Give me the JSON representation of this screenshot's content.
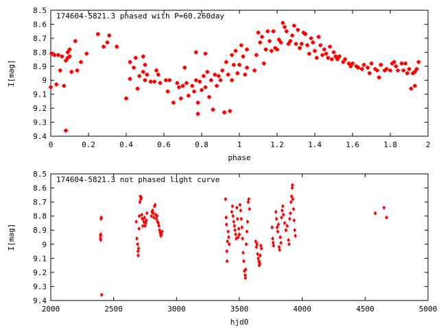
{
  "chart_data": [
    {
      "type": "scatter",
      "title": "174604-5821.3 phased with P=60.260day",
      "xlabel": "phase",
      "ylabel": "I[mag]",
      "xlim": [
        0,
        2
      ],
      "ylim": [
        9.4,
        8.5
      ],
      "y_inverted": true,
      "grid": false,
      "marker_color": "#ff0000",
      "xticks": [
        "0",
        "0.2",
        "0.4",
        "0.6",
        "0.8",
        "1",
        "1.2",
        "1.4",
        "1.6",
        "1.8",
        "2"
      ],
      "yticks": [
        "8.5",
        "8.6",
        "8.7",
        "8.8",
        "8.9",
        "9",
        "9.1",
        "9.2",
        "9.3",
        "9.4"
      ],
      "points": [
        [
          0.0,
          9.05
        ],
        [
          0.004,
          8.81
        ],
        [
          0.02,
          8.82
        ],
        [
          0.03,
          9.03
        ],
        [
          0.04,
          8.82
        ],
        [
          0.05,
          8.93
        ],
        [
          0.06,
          8.83
        ],
        [
          0.07,
          9.04
        ],
        [
          0.08,
          8.86
        ],
        [
          0.08,
          9.36
        ],
        [
          0.09,
          8.8
        ],
        [
          0.09,
          8.84
        ],
        [
          0.1,
          8.78
        ],
        [
          0.1,
          8.83
        ],
        [
          0.11,
          8.94
        ],
        [
          0.13,
          8.72
        ],
        [
          0.14,
          8.93
        ],
        [
          0.16,
          8.87
        ],
        [
          0.19,
          8.81
        ],
        [
          0.25,
          8.67
        ],
        [
          0.28,
          8.76
        ],
        [
          0.3,
          8.73
        ],
        [
          0.31,
          8.68
        ],
        [
          0.35,
          8.76
        ],
        [
          0.4,
          9.13
        ],
        [
          0.42,
          8.87
        ],
        [
          0.42,
          8.99
        ],
        [
          0.44,
          8.91
        ],
        [
          0.45,
          8.84
        ],
        [
          0.46,
          9.06
        ],
        [
          0.47,
          8.97
        ],
        [
          0.49,
          8.83
        ],
        [
          0.49,
          8.94
        ],
        [
          0.5,
          8.89
        ],
        [
          0.5,
          9.0
        ],
        [
          0.51,
          8.96
        ],
        [
          0.53,
          9.01
        ],
        [
          0.55,
          9.01
        ],
        [
          0.56,
          8.93
        ],
        [
          0.57,
          8.96
        ],
        [
          0.58,
          9.02
        ],
        [
          0.61,
          9.0
        ],
        [
          0.62,
          9.08
        ],
        [
          0.63,
          9.0
        ],
        [
          0.65,
          9.16
        ],
        [
          0.67,
          9.02
        ],
        [
          0.68,
          9.05
        ],
        [
          0.69,
          9.13
        ],
        [
          0.7,
          9.04
        ],
        [
          0.71,
          8.91
        ],
        [
          0.72,
          9.02
        ],
        [
          0.73,
          9.11
        ],
        [
          0.75,
          9.04
        ],
        [
          0.76,
          9.08
        ],
        [
          0.77,
          8.8
        ],
        [
          0.77,
          9.0
        ],
        [
          0.78,
          9.24
        ],
        [
          0.78,
          9.16
        ],
        [
          0.79,
          9.01
        ],
        [
          0.8,
          9.07
        ],
        [
          0.81,
          8.97
        ],
        [
          0.82,
          8.81
        ],
        [
          0.82,
          9.05
        ],
        [
          0.83,
          8.94
        ],
        [
          0.84,
          9.12
        ],
        [
          0.85,
          9.0
        ],
        [
          0.86,
          9.21
        ],
        [
          0.87,
          8.96
        ],
        [
          0.88,
          9.04
        ],
        [
          0.89,
          8.97
        ],
        [
          0.9,
          9.0
        ],
        [
          0.91,
          8.93
        ],
        [
          0.92,
          9.23
        ],
        [
          0.93,
          8.87
        ],
        [
          0.94,
          8.96
        ],
        [
          0.95,
          9.22
        ],
        [
          0.96,
          8.82
        ],
        [
          0.96,
          9.0
        ],
        [
          0.97,
          8.89
        ],
        [
          0.98,
          8.79
        ],
        [
          0.99,
          8.95
        ],
        [
          1.0,
          8.89
        ],
        [
          1.01,
          8.75
        ],
        [
          1.02,
          8.83
        ],
        [
          1.03,
          8.96
        ],
        [
          1.04,
          8.78
        ],
        [
          1.04,
          8.91
        ],
        [
          1.08,
          8.93
        ],
        [
          1.09,
          8.82
        ],
        [
          1.1,
          8.66
        ],
        [
          1.11,
          8.73
        ],
        [
          1.12,
          8.69
        ],
        [
          1.13,
          8.88
        ],
        [
          1.14,
          8.78
        ],
        [
          1.15,
          8.65
        ],
        [
          1.16,
          8.72
        ],
        [
          1.17,
          8.79
        ],
        [
          1.18,
          8.65
        ],
        [
          1.19,
          8.77
        ],
        [
          1.2,
          8.78
        ],
        [
          1.21,
          8.71
        ],
        [
          1.22,
          8.73
        ],
        [
          1.23,
          8.59
        ],
        [
          1.24,
          8.62
        ],
        [
          1.25,
          8.65
        ],
        [
          1.26,
          8.74
        ],
        [
          1.27,
          8.72
        ],
        [
          1.28,
          8.68
        ],
        [
          1.29,
          8.61
        ],
        [
          1.3,
          8.74
        ],
        [
          1.31,
          8.64
        ],
        [
          1.32,
          8.77
        ],
        [
          1.33,
          8.74
        ],
        [
          1.34,
          8.66
        ],
        [
          1.35,
          8.67
        ],
        [
          1.36,
          8.75
        ],
        [
          1.37,
          8.81
        ],
        [
          1.38,
          8.7
        ],
        [
          1.39,
          8.73
        ],
        [
          1.4,
          8.79
        ],
        [
          1.41,
          8.84
        ],
        [
          1.42,
          8.69
        ],
        [
          1.43,
          8.75
        ],
        [
          1.44,
          8.82
        ],
        [
          1.45,
          8.78
        ],
        [
          1.46,
          8.81
        ],
        [
          1.47,
          8.84
        ],
        [
          1.48,
          8.76
        ],
        [
          1.49,
          8.85
        ],
        [
          1.5,
          8.8
        ],
        [
          1.51,
          8.83
        ],
        [
          1.52,
          8.85
        ],
        [
          1.53,
          8.83
        ],
        [
          1.55,
          8.87
        ],
        [
          1.56,
          8.85
        ],
        [
          1.58,
          8.88
        ],
        [
          1.59,
          8.9
        ],
        [
          1.6,
          8.88
        ],
        [
          1.62,
          8.9
        ],
        [
          1.63,
          8.91
        ],
        [
          1.65,
          8.92
        ],
        [
          1.66,
          8.89
        ],
        [
          1.68,
          8.91
        ],
        [
          1.69,
          8.95
        ],
        [
          1.7,
          8.88
        ],
        [
          1.72,
          8.92
        ],
        [
          1.73,
          8.93
        ],
        [
          1.74,
          8.98
        ],
        [
          1.75,
          8.89
        ],
        [
          1.77,
          8.93
        ],
        [
          1.78,
          8.92
        ],
        [
          1.8,
          8.93
        ],
        [
          1.81,
          8.88
        ],
        [
          1.82,
          8.87
        ],
        [
          1.83,
          8.9
        ],
        [
          1.84,
          8.93
        ],
        [
          1.86,
          8.88
        ],
        [
          1.87,
          8.93
        ],
        [
          1.88,
          8.88
        ],
        [
          1.89,
          8.95
        ],
        [
          1.9,
          8.92
        ],
        [
          1.91,
          9.06
        ],
        [
          1.92,
          8.95
        ],
        [
          1.93,
          8.94
        ],
        [
          1.93,
          9.04
        ],
        [
          1.94,
          8.92
        ],
        [
          1.95,
          8.87
        ]
      ]
    },
    {
      "type": "scatter",
      "title": "174604-5821.3 not phased light curve",
      "xlabel": "hjd0",
      "ylabel": "I[mag]",
      "xlim": [
        2000,
        5000
      ],
      "ylim": [
        9.4,
        8.5
      ],
      "y_inverted": true,
      "grid": false,
      "marker_color": "#ff0000",
      "xticks": [
        "2000",
        "2500",
        "3000",
        "3500",
        "4000",
        "4500",
        "5000"
      ],
      "yticks": [
        "8.5",
        "8.6",
        "8.7",
        "8.8",
        "8.9",
        "9",
        "9.1",
        "9.2",
        "9.3",
        "9.4"
      ],
      "points": [
        [
          2395,
          8.96
        ],
        [
          2396,
          8.94
        ],
        [
          2397,
          8.93
        ],
        [
          2398,
          8.97
        ],
        [
          2400,
          8.82
        ],
        [
          2402,
          8.81
        ],
        [
          2405,
          9.36
        ],
        [
          2680,
          8.84
        ],
        [
          2685,
          8.96
        ],
        [
          2690,
          9.0
        ],
        [
          2693,
          9.05
        ],
        [
          2695,
          9.08
        ],
        [
          2698,
          9.03
        ],
        [
          2702,
          8.89
        ],
        [
          2705,
          8.8
        ],
        [
          2708,
          8.7
        ],
        [
          2712,
          8.66
        ],
        [
          2716,
          8.68
        ],
        [
          2720,
          8.67
        ],
        [
          2724,
          8.79
        ],
        [
          2728,
          8.82
        ],
        [
          2732,
          8.87
        ],
        [
          2740,
          8.84
        ],
        [
          2745,
          8.81
        ],
        [
          2750,
          8.87
        ],
        [
          2755,
          8.85
        ],
        [
          2760,
          8.83
        ],
        [
          2765,
          8.78
        ],
        [
          2800,
          8.8
        ],
        [
          2805,
          8.77
        ],
        [
          2810,
          8.76
        ],
        [
          2815,
          8.78
        ],
        [
          2820,
          8.81
        ],
        [
          2825,
          8.73
        ],
        [
          2830,
          8.72
        ],
        [
          2835,
          8.79
        ],
        [
          2840,
          8.82
        ],
        [
          2845,
          8.8
        ],
        [
          2850,
          8.84
        ],
        [
          2855,
          8.85
        ],
        [
          2860,
          8.87
        ],
        [
          2865,
          8.9
        ],
        [
          2870,
          8.92
        ],
        [
          2875,
          8.94
        ],
        [
          2880,
          8.93
        ],
        [
          2885,
          8.91
        ],
        [
          3390,
          8.68
        ],
        [
          3395,
          8.81
        ],
        [
          3398,
          8.86
        ],
        [
          3400,
          9.05
        ],
        [
          3402,
          9.12
        ],
        [
          3405,
          8.98
        ],
        [
          3410,
          8.91
        ],
        [
          3415,
          8.95
        ],
        [
          3420,
          9.0
        ],
        [
          3440,
          8.77
        ],
        [
          3445,
          8.73
        ],
        [
          3450,
          8.8
        ],
        [
          3455,
          8.84
        ],
        [
          3460,
          8.87
        ],
        [
          3465,
          8.9
        ],
        [
          3470,
          8.93
        ],
        [
          3475,
          8.96
        ],
        [
          3480,
          8.74
        ],
        [
          3485,
          8.82
        ],
        [
          3490,
          8.95
        ],
        [
          3495,
          8.89
        ],
        [
          3500,
          8.93
        ],
        [
          3505,
          8.72
        ],
        [
          3510,
          8.76
        ],
        [
          3515,
          8.82
        ],
        [
          3520,
          8.88
        ],
        [
          3525,
          8.96
        ],
        [
          3530,
          9.06
        ],
        [
          3535,
          9.12
        ],
        [
          3540,
          9.19
        ],
        [
          3545,
          9.22
        ],
        [
          3548,
          9.24
        ],
        [
          3550,
          9.18
        ],
        [
          3555,
          9.0
        ],
        [
          3560,
          8.91
        ],
        [
          3565,
          8.84
        ],
        [
          3570,
          8.7
        ],
        [
          3575,
          8.68
        ],
        [
          3580,
          8.75
        ],
        [
          3630,
          8.98
        ],
        [
          3635,
          9.02
        ],
        [
          3640,
          9.0
        ],
        [
          3645,
          9.07
        ],
        [
          3650,
          9.1
        ],
        [
          3655,
          9.12
        ],
        [
          3658,
          9.15
        ],
        [
          3660,
          9.13
        ],
        [
          3662,
          9.14
        ],
        [
          3665,
          9.08
        ],
        [
          3670,
          9.01
        ],
        [
          3675,
          9.03
        ],
        [
          3760,
          8.88
        ],
        [
          3765,
          8.96
        ],
        [
          3768,
          8.99
        ],
        [
          3772,
          9.01
        ],
        [
          3790,
          8.77
        ],
        [
          3795,
          8.82
        ],
        [
          3800,
          8.88
        ],
        [
          3805,
          8.91
        ],
        [
          3810,
          8.86
        ],
        [
          3815,
          9.02
        ],
        [
          3820,
          9.04
        ],
        [
          3825,
          8.95
        ],
        [
          3830,
          8.99
        ],
        [
          3835,
          8.81
        ],
        [
          3840,
          8.76
        ],
        [
          3845,
          8.73
        ],
        [
          3850,
          8.79
        ],
        [
          3860,
          8.85
        ],
        [
          3870,
          8.9
        ],
        [
          3880,
          8.87
        ],
        [
          3890,
          8.97
        ],
        [
          3895,
          9.0
        ],
        [
          3900,
          8.82
        ],
        [
          3905,
          8.78
        ],
        [
          3910,
          8.7
        ],
        [
          3915,
          8.66
        ],
        [
          3920,
          8.6
        ],
        [
          3922,
          8.58
        ],
        [
          3925,
          8.68
        ],
        [
          3930,
          8.75
        ],
        [
          3935,
          8.83
        ],
        [
          3940,
          8.9
        ],
        [
          3945,
          8.94
        ],
        [
          4580,
          8.78
        ],
        [
          4650,
          8.74
        ],
        [
          4670,
          8.81
        ]
      ]
    }
  ]
}
